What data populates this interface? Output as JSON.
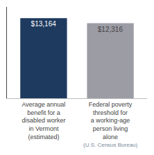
{
  "chart_data": {
    "type": "bar",
    "categories": [
      "Average annual\nbenefit for a\ndisabled worker\nin Vermont\n(estimated)",
      "Federal poverty\nthreshold for\na working-age\nperson living\nalone"
    ],
    "annotations": [
      "(U.S. Census Bureau)"
    ],
    "values": [
      13164,
      12316
    ],
    "value_labels": [
      "$13,164",
      "$12,316"
    ],
    "colors": [
      "#1e3a5f",
      "#9c9ca4"
    ],
    "ylim": [
      0,
      15000
    ],
    "grid": false,
    "data_labels": true,
    "tick_labels": "x"
  }
}
